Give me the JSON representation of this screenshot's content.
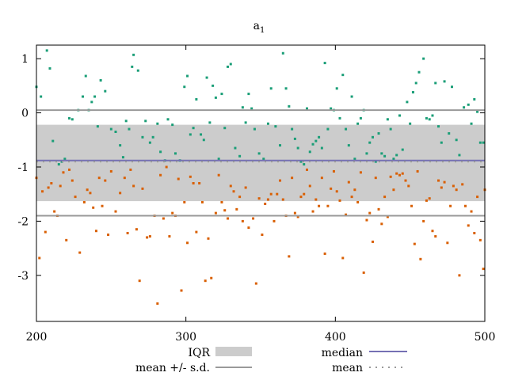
{
  "chart_data": {
    "type": "scatter",
    "title": "a",
    "title_subscript": "1",
    "xlim": [
      200,
      500
    ],
    "ylim": [
      -3.85,
      1.25
    ],
    "x_ticks": [
      200,
      300,
      400,
      500
    ],
    "y_ticks": [
      1,
      0,
      -1,
      -2,
      -3
    ],
    "x_tick_labels": [
      "200",
      "300",
      "400",
      "500"
    ],
    "y_tick_labels": [
      "1",
      "0",
      "-1",
      "-2",
      "-3"
    ],
    "grid": false,
    "legend_position": "bottom",
    "reference_lines": {
      "mean": -0.9,
      "sd_upper": 0.05,
      "sd_lower": -1.9,
      "median": -0.88,
      "iqr_upper": -0.22,
      "iqr_lower": -1.63
    },
    "legend": [
      {
        "label": "IQR",
        "kind": "band"
      },
      {
        "label": "median",
        "kind": "line"
      },
      {
        "label": "mean +/- s.d.",
        "kind": "line"
      },
      {
        "label": "mean",
        "kind": "dotted"
      }
    ],
    "colors": {
      "series_green": "#1a9e77",
      "series_orange": "#d95f02",
      "iqr": "#cccccc",
      "median": "#7570b3",
      "sd": "#999999",
      "mean": "#999999"
    },
    "series": [
      {
        "points": [
          [
            200,
            0.48
          ],
          [
            203,
            0.3
          ],
          [
            207,
            1.15
          ],
          [
            209,
            0.82
          ],
          [
            211,
            -0.52
          ],
          [
            215,
            -0.95
          ],
          [
            217,
            -0.9
          ],
          [
            219,
            -0.85
          ],
          [
            222,
            -0.1
          ],
          [
            224,
            -0.12
          ],
          [
            228,
            0.05
          ],
          [
            231,
            0.3
          ],
          [
            233,
            0.68
          ],
          [
            235,
            0.05
          ],
          [
            237,
            0.2
          ],
          [
            239,
            0.3
          ],
          [
            241,
            -0.25
          ],
          [
            243,
            0.6
          ],
          [
            246,
            0.4
          ],
          [
            250,
            -0.3
          ],
          [
            253,
            -0.35
          ],
          [
            256,
            -0.6
          ],
          [
            258,
            -0.82
          ],
          [
            260,
            -0.15
          ],
          [
            262,
            -0.3
          ],
          [
            264,
            0.85
          ],
          [
            265,
            1.07
          ],
          [
            268,
            0.78
          ],
          [
            271,
            -0.45
          ],
          [
            273,
            -0.15
          ],
          [
            276,
            -0.55
          ],
          [
            278,
            -0.45
          ],
          [
            281,
            -0.2
          ],
          [
            283,
            -0.72
          ],
          [
            286,
            -0.88
          ],
          [
            288,
            -0.12
          ],
          [
            291,
            -0.22
          ],
          [
            293,
            -0.75
          ],
          [
            296,
            -0.88
          ],
          [
            299,
            0.48
          ],
          [
            301,
            0.68
          ],
          [
            303,
            -0.4
          ],
          [
            305,
            -0.28
          ],
          [
            307,
            0.25
          ],
          [
            310,
            -0.4
          ],
          [
            312,
            -0.5
          ],
          [
            314,
            0.65
          ],
          [
            316,
            -0.18
          ],
          [
            318,
            0.5
          ],
          [
            320,
            0.28
          ],
          [
            322,
            -0.85
          ],
          [
            324,
            0.35
          ],
          [
            326,
            -0.28
          ],
          [
            328,
            0.85
          ],
          [
            330,
            0.9
          ],
          [
            333,
            -0.65
          ],
          [
            336,
            -0.8
          ],
          [
            338,
            0.1
          ],
          [
            340,
            -0.18
          ],
          [
            342,
            0.35
          ],
          [
            344,
            0.08
          ],
          [
            346,
            -0.3
          ],
          [
            349,
            -0.75
          ],
          [
            352,
            -0.85
          ],
          [
            355,
            -0.2
          ],
          [
            357,
            0.45
          ],
          [
            360,
            -0.25
          ],
          [
            363,
            -0.6
          ],
          [
            365,
            1.1
          ],
          [
            367,
            0.45
          ],
          [
            369,
            0.12
          ],
          [
            371,
            -0.3
          ],
          [
            373,
            -0.48
          ],
          [
            375,
            -0.65
          ],
          [
            377,
            -0.9
          ],
          [
            379,
            -0.95
          ],
          [
            381,
            0.08
          ],
          [
            383,
            -0.72
          ],
          [
            385,
            -0.58
          ],
          [
            387,
            -0.52
          ],
          [
            389,
            -0.45
          ],
          [
            391,
            -0.65
          ],
          [
            393,
            0.92
          ],
          [
            395,
            -0.3
          ],
          [
            397,
            0.08
          ],
          [
            399,
            0.05
          ],
          [
            401,
            0.45
          ],
          [
            403,
            -0.1
          ],
          [
            405,
            0.7
          ],
          [
            407,
            -0.3
          ],
          [
            409,
            -0.6
          ],
          [
            411,
            0.3
          ],
          [
            413,
            -0.85
          ],
          [
            415,
            -0.2
          ],
          [
            417,
            -0.1
          ],
          [
            419,
            0.05
          ],
          [
            421,
            -0.75
          ],
          [
            423,
            -0.55
          ],
          [
            425,
            -0.45
          ],
          [
            427,
            -0.9
          ],
          [
            429,
            -0.38
          ],
          [
            431,
            -0.75
          ],
          [
            433,
            -0.8
          ],
          [
            435,
            -0.12
          ],
          [
            437,
            -0.3
          ],
          [
            439,
            -0.85
          ],
          [
            441,
            -0.78
          ],
          [
            443,
            -0.05
          ],
          [
            445,
            -0.68
          ],
          [
            448,
            0.2
          ],
          [
            450,
            -0.2
          ],
          [
            452,
            0.38
          ],
          [
            454,
            0.55
          ],
          [
            456,
            0.75
          ],
          [
            459,
            1.0
          ],
          [
            461,
            -0.1
          ],
          [
            463,
            -0.12
          ],
          [
            465,
            -0.05
          ],
          [
            467,
            0.55
          ],
          [
            469,
            -0.25
          ],
          [
            471,
            -0.55
          ],
          [
            473,
            0.58
          ],
          [
            476,
            -0.38
          ],
          [
            478,
            0.48
          ],
          [
            481,
            -0.5
          ],
          [
            483,
            -0.78
          ],
          [
            486,
            0.1
          ],
          [
            489,
            0.15
          ],
          [
            491,
            -0.2
          ],
          [
            493,
            0.25
          ],
          [
            495,
            0.02
          ],
          [
            497,
            -0.55
          ],
          [
            499,
            -0.55
          ]
        ]
      },
      {
        "points": [
          [
            200,
            -1.2
          ],
          [
            202,
            -2.68
          ],
          [
            204,
            -1.45
          ],
          [
            206,
            -2.2
          ],
          [
            208,
            -1.38
          ],
          [
            210,
            -1.3
          ],
          [
            212,
            -1.82
          ],
          [
            214,
            -1.9
          ],
          [
            216,
            -1.35
          ],
          [
            218,
            -1.1
          ],
          [
            220,
            -2.35
          ],
          [
            222,
            -1.05
          ],
          [
            224,
            -1.25
          ],
          [
            226,
            -1.55
          ],
          [
            229,
            -2.58
          ],
          [
            232,
            -1.65
          ],
          [
            234,
            -1.42
          ],
          [
            236,
            -1.48
          ],
          [
            238,
            -1.75
          ],
          [
            240,
            -2.18
          ],
          [
            242,
            -1.2
          ],
          [
            244,
            -1.72
          ],
          [
            246,
            -1.25
          ],
          [
            248,
            -2.25
          ],
          [
            250,
            -1.08
          ],
          [
            253,
            -1.82
          ],
          [
            256,
            -1.48
          ],
          [
            259,
            -1.2
          ],
          [
            261,
            -2.22
          ],
          [
            263,
            -1.05
          ],
          [
            265,
            -1.35
          ],
          [
            267,
            -2.15
          ],
          [
            269,
            -3.1
          ],
          [
            271,
            -1.4
          ],
          [
            274,
            -2.3
          ],
          [
            276,
            -2.28
          ],
          [
            279,
            -1.9
          ],
          [
            281,
            -3.52
          ],
          [
            283,
            -1.15
          ],
          [
            285,
            -1.95
          ],
          [
            287,
            -1.0
          ],
          [
            289,
            -2.28
          ],
          [
            291,
            -1.85
          ],
          [
            293,
            -1.9
          ],
          [
            295,
            -1.22
          ],
          [
            297,
            -3.28
          ],
          [
            299,
            -1.65
          ],
          [
            301,
            -2.4
          ],
          [
            303,
            -1.18
          ],
          [
            305,
            -1.3
          ],
          [
            307,
            -2.2
          ],
          [
            309,
            -1.3
          ],
          [
            311,
            -1.65
          ],
          [
            313,
            -3.1
          ],
          [
            315,
            -2.32
          ],
          [
            317,
            -3.05
          ],
          [
            320,
            -1.85
          ],
          [
            322,
            -1.15
          ],
          [
            324,
            -1.65
          ],
          [
            326,
            -1.8
          ],
          [
            328,
            -1.95
          ],
          [
            330,
            -1.35
          ],
          [
            332,
            -1.45
          ],
          [
            334,
            -1.78
          ],
          [
            336,
            -1.55
          ],
          [
            338,
            -2.0
          ],
          [
            340,
            -1.38
          ],
          [
            342,
            -2.12
          ],
          [
            345,
            -1.95
          ],
          [
            347,
            -3.15
          ],
          [
            349,
            -1.58
          ],
          [
            351,
            -2.25
          ],
          [
            353,
            -1.68
          ],
          [
            355,
            -1.6
          ],
          [
            357,
            -1.5
          ],
          [
            359,
            -2.0
          ],
          [
            361,
            -1.5
          ],
          [
            363,
            -1.25
          ],
          [
            365,
            -1.6
          ],
          [
            367,
            -1.9
          ],
          [
            369,
            -2.65
          ],
          [
            371,
            -1.2
          ],
          [
            373,
            -1.85
          ],
          [
            375,
            -1.92
          ],
          [
            377,
            -1.55
          ],
          [
            379,
            -1.5
          ],
          [
            381,
            -1.05
          ],
          [
            383,
            -1.35
          ],
          [
            385,
            -1.82
          ],
          [
            387,
            -1.6
          ],
          [
            389,
            -1.72
          ],
          [
            391,
            -1.2
          ],
          [
            393,
            -2.6
          ],
          [
            395,
            -1.72
          ],
          [
            397,
            -1.4
          ],
          [
            399,
            -1.08
          ],
          [
            401,
            -1.45
          ],
          [
            403,
            -1.62
          ],
          [
            405,
            -2.68
          ],
          [
            407,
            -1.88
          ],
          [
            409,
            -1.28
          ],
          [
            411,
            -1.55
          ],
          [
            413,
            -1.42
          ],
          [
            415,
            -1.65
          ],
          [
            417,
            -1.1
          ],
          [
            419,
            -2.95
          ],
          [
            421,
            -1.98
          ],
          [
            423,
            -1.85
          ],
          [
            425,
            -2.38
          ],
          [
            427,
            -1.2
          ],
          [
            429,
            -1.78
          ],
          [
            431,
            -2.05
          ],
          [
            433,
            -1.55
          ],
          [
            435,
            -1.92
          ],
          [
            437,
            -1.18
          ],
          [
            439,
            -1.42
          ],
          [
            441,
            -1.12
          ],
          [
            443,
            -1.15
          ],
          [
            445,
            -1.12
          ],
          [
            447,
            -1.25
          ],
          [
            449,
            -1.35
          ],
          [
            451,
            -1.72
          ],
          [
            453,
            -2.42
          ],
          [
            455,
            -1.08
          ],
          [
            457,
            -2.7
          ],
          [
            459,
            -2.0
          ],
          [
            461,
            -1.62
          ],
          [
            463,
            -1.58
          ],
          [
            465,
            -2.18
          ],
          [
            467,
            -2.28
          ],
          [
            469,
            -1.25
          ],
          [
            471,
            -1.38
          ],
          [
            473,
            -1.28
          ],
          [
            475,
            -2.4
          ],
          [
            477,
            -1.72
          ],
          [
            479,
            -1.35
          ],
          [
            481,
            -1.42
          ],
          [
            483,
            -3.0
          ],
          [
            485,
            -1.32
          ],
          [
            487,
            -1.72
          ],
          [
            489,
            -2.08
          ],
          [
            491,
            -1.82
          ],
          [
            493,
            -2.22
          ],
          [
            495,
            -1.55
          ],
          [
            497,
            -2.35
          ],
          [
            499,
            -2.88
          ],
          [
            500,
            -1.42
          ]
        ]
      }
    ]
  }
}
